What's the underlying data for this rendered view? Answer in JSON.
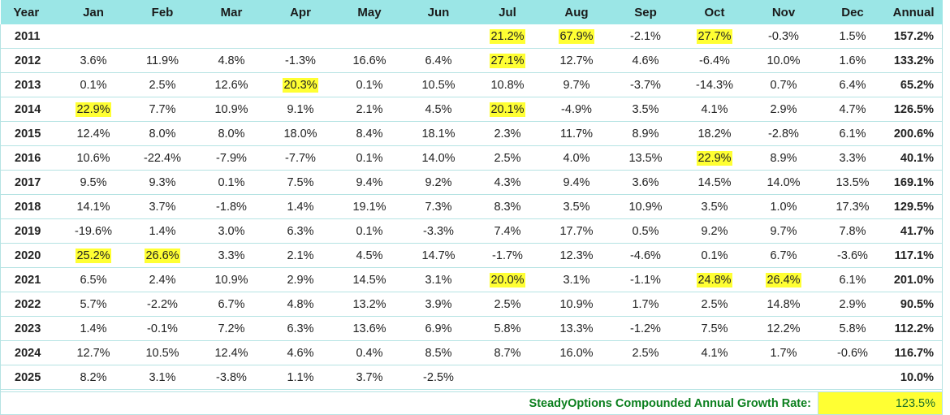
{
  "headers": [
    "Year",
    "Jan",
    "Feb",
    "Mar",
    "Apr",
    "May",
    "Jun",
    "Jul",
    "Aug",
    "Sep",
    "Oct",
    "Nov",
    "Dec",
    "Annual"
  ],
  "rows": [
    {
      "year": "2011",
      "months": [
        "",
        "",
        "",
        "",
        "",
        "",
        "21.2%",
        "67.9%",
        "-2.1%",
        "27.7%",
        "-0.3%",
        "1.5%"
      ],
      "annual": "157.2%",
      "highlight": [
        6,
        7,
        9
      ]
    },
    {
      "year": "2012",
      "months": [
        "3.6%",
        "11.9%",
        "4.8%",
        "-1.3%",
        "16.6%",
        "6.4%",
        "27.1%",
        "12.7%",
        "4.6%",
        "-6.4%",
        "10.0%",
        "1.6%"
      ],
      "annual": "133.2%",
      "highlight": [
        6
      ]
    },
    {
      "year": "2013",
      "months": [
        "0.1%",
        "2.5%",
        "12.6%",
        "20.3%",
        "0.1%",
        "10.5%",
        "10.8%",
        "9.7%",
        "-3.7%",
        "-14.3%",
        "0.7%",
        "6.4%"
      ],
      "annual": "65.2%",
      "highlight": [
        3
      ]
    },
    {
      "year": "2014",
      "months": [
        "22.9%",
        "7.7%",
        "10.9%",
        "9.1%",
        "2.1%",
        "4.5%",
        "20.1%",
        "-4.9%",
        "3.5%",
        "4.1%",
        "2.9%",
        "4.7%"
      ],
      "annual": "126.5%",
      "highlight": [
        0,
        6
      ]
    },
    {
      "year": "2015",
      "months": [
        "12.4%",
        "8.0%",
        "8.0%",
        "18.0%",
        "8.4%",
        "18.1%",
        "2.3%",
        "11.7%",
        "8.9%",
        "18.2%",
        "-2.8%",
        "6.1%"
      ],
      "annual": "200.6%",
      "highlight": []
    },
    {
      "year": "2016",
      "months": [
        "10.6%",
        "-22.4%",
        "-7.9%",
        "-7.7%",
        "0.1%",
        "14.0%",
        "2.5%",
        "4.0%",
        "13.5%",
        "22.9%",
        "8.9%",
        "3.3%"
      ],
      "annual": "40.1%",
      "highlight": [
        9
      ]
    },
    {
      "year": "2017",
      "months": [
        "9.5%",
        "9.3%",
        "0.1%",
        "7.5%",
        "9.4%",
        "9.2%",
        "4.3%",
        "9.4%",
        "3.6%",
        "14.5%",
        "14.0%",
        "13.5%"
      ],
      "annual": "169.1%",
      "highlight": []
    },
    {
      "year": "2018",
      "months": [
        "14.1%",
        "3.7%",
        "-1.8%",
        "1.4%",
        "19.1%",
        "7.3%",
        "8.3%",
        "3.5%",
        "10.9%",
        "3.5%",
        "1.0%",
        "17.3%"
      ],
      "annual": "129.5%",
      "highlight": []
    },
    {
      "year": "2019",
      "months": [
        "-19.6%",
        "1.4%",
        "3.0%",
        "6.3%",
        "0.1%",
        "-3.3%",
        "7.4%",
        "17.7%",
        "0.5%",
        "9.2%",
        "9.7%",
        "7.8%"
      ],
      "annual": "41.7%",
      "highlight": []
    },
    {
      "year": "2020",
      "months": [
        "25.2%",
        "26.6%",
        "3.3%",
        "2.1%",
        "4.5%",
        "14.7%",
        "-1.7%",
        "12.3%",
        "-4.6%",
        "0.1%",
        "6.7%",
        "-3.6%"
      ],
      "annual": "117.1%",
      "highlight": [
        0,
        1
      ]
    },
    {
      "year": "2021",
      "months": [
        "6.5%",
        "2.4%",
        "10.9%",
        "2.9%",
        "14.5%",
        "3.1%",
        "20.0%",
        "3.1%",
        "-1.1%",
        "24.8%",
        "26.4%",
        "6.1%"
      ],
      "annual": "201.0%",
      "highlight": [
        6,
        9,
        10
      ]
    },
    {
      "year": "2022",
      "months": [
        "5.7%",
        "-2.2%",
        "6.7%",
        "4.8%",
        "13.2%",
        "3.9%",
        "2.5%",
        "10.9%",
        "1.7%",
        "2.5%",
        "14.8%",
        "2.9%"
      ],
      "annual": "90.5%",
      "highlight": []
    },
    {
      "year": "2023",
      "months": [
        "1.4%",
        "-0.1%",
        "7.2%",
        "6.3%",
        "13.6%",
        "6.9%",
        "5.8%",
        "13.3%",
        "-1.2%",
        "7.5%",
        "12.2%",
        "5.8%"
      ],
      "annual": "112.2%",
      "highlight": []
    },
    {
      "year": "2024",
      "months": [
        "12.7%",
        "10.5%",
        "12.4%",
        "4.6%",
        "0.4%",
        "8.5%",
        "8.7%",
        "16.0%",
        "2.5%",
        "4.1%",
        "1.7%",
        "-0.6%"
      ],
      "annual": "116.7%",
      "highlight": []
    },
    {
      "year": "2025",
      "months": [
        "8.2%",
        "3.1%",
        "-3.8%",
        "1.1%",
        "3.7%",
        "-2.5%",
        "",
        "",
        "",
        "",
        "",
        ""
      ],
      "annual": "10.0%",
      "highlight": []
    }
  ],
  "cagr": {
    "label": "SteadyOptions Compounded Annual Growth Rate:",
    "value": "123.5%"
  },
  "colors": {
    "header_bg": "#9be6e6",
    "highlight": "#ffff33",
    "cagr_text": "#0a7f1d",
    "border": "#b5e3e3"
  }
}
